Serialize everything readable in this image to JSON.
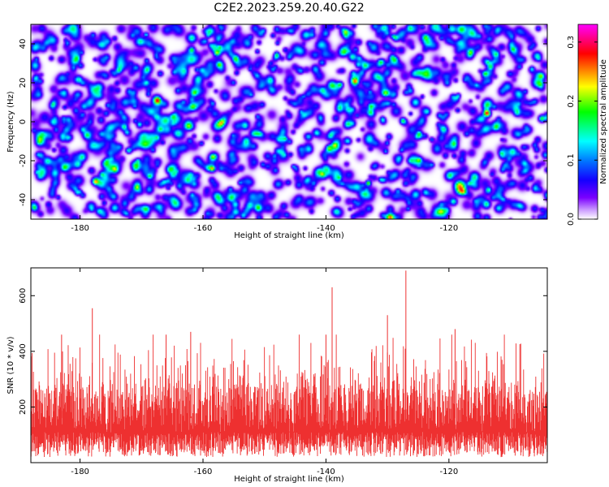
{
  "title": "C2E2.2023.259.20.40.G22",
  "chart_data": [
    {
      "type": "heatmap",
      "xlabel": "Height of straight line (km)",
      "ylabel": "Frequency (Hz)",
      "xlim": [
        -188,
        -104
      ],
      "ylim": [
        -50,
        50
      ],
      "x_ticks": [
        -180,
        -160,
        -140,
        -120
      ],
      "y_ticks": [
        -40,
        -20,
        0,
        20,
        40
      ],
      "colorbar": {
        "label": "Normalized spectral amplitude",
        "range": [
          0.0,
          0.33
        ],
        "ticks": [
          0.0,
          0.1,
          0.2,
          0.3
        ],
        "colors": [
          "#ffffff",
          "#7a00ff",
          "#0000ff",
          "#00ffff",
          "#00ff00",
          "#ffff00",
          "#ff0000",
          "#ff00ff"
        ]
      },
      "notable_peaks": [
        {
          "x": -114,
          "y": 5,
          "value": 0.23
        },
        {
          "x": -105,
          "y": 2,
          "value": 0.17
        },
        {
          "x": -165,
          "y": 3,
          "value": 0.13
        },
        {
          "x": -131,
          "y": 31,
          "value": 0.12
        }
      ],
      "grid": false
    },
    {
      "type": "line",
      "xlabel": "Height of straight line (km)",
      "ylabel": "SNR (10 * v/v)",
      "xlim": [
        -188,
        -104
      ],
      "ylim": [
        0,
        700
      ],
      "x_ticks": [
        -180,
        -160,
        -140,
        -120
      ],
      "y_ticks": [
        200,
        400,
        600
      ],
      "color": "#ee3030",
      "baseline_mean": 160,
      "noise_band": [
        20,
        380
      ],
      "notable_spikes": [
        {
          "x": -127,
          "y": 690
        },
        {
          "x": -139,
          "y": 630
        },
        {
          "x": -178,
          "y": 555
        },
        {
          "x": -130,
          "y": 530
        },
        {
          "x": -140,
          "y": 460
        },
        {
          "x": -166,
          "y": 460
        },
        {
          "x": -119,
          "y": 480
        },
        {
          "x": -104,
          "y": 460
        },
        {
          "x": -162,
          "y": 470
        },
        {
          "x": -183,
          "y": 460
        }
      ],
      "grid": false
    }
  ]
}
